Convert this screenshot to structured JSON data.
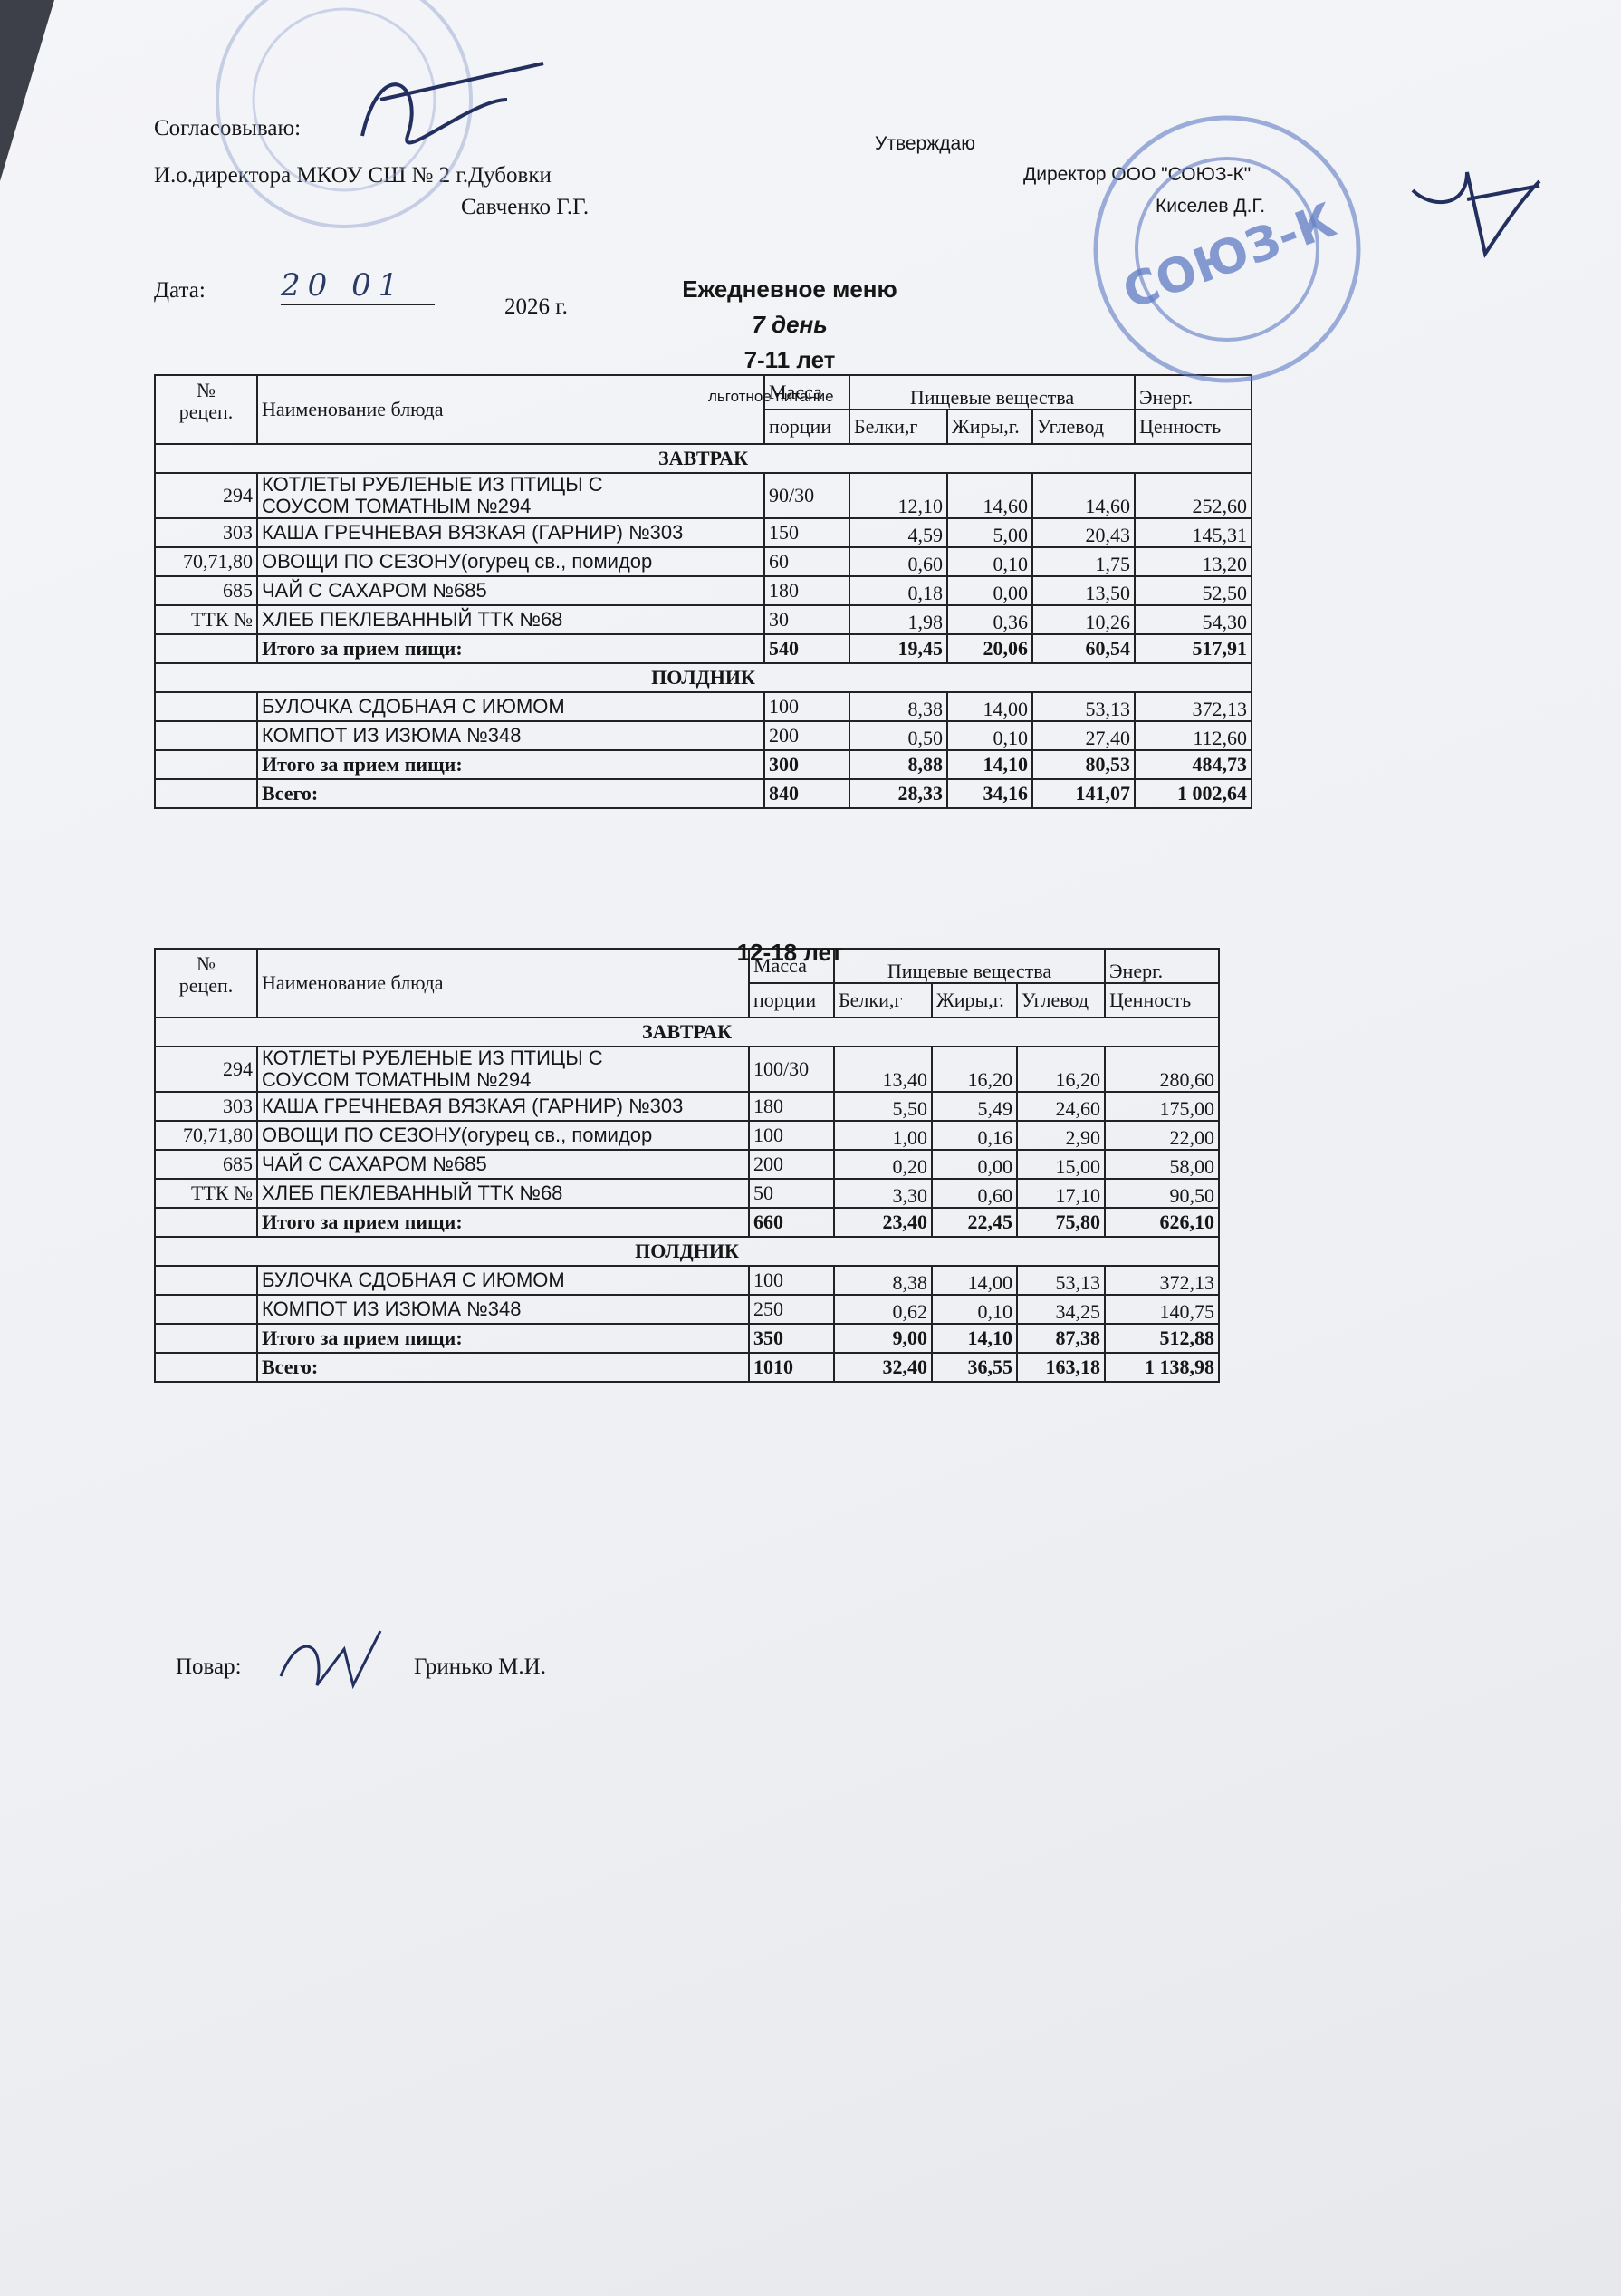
{
  "header": {
    "approve_left": {
      "label": "Согласовываю:",
      "position": "И.о.директора МКОУ СШ № 2 г.Дубовки",
      "person": "Савченко Г.Г."
    },
    "approve_right": {
      "label": "Утверждаю",
      "position": "Директор ООО \"СОЮЗ-К\"",
      "person": "Киселев Д.Г."
    },
    "date": {
      "label": "Дата:",
      "handwritten": "20 01",
      "year": "2026 г."
    },
    "title": "Ежедневное меню",
    "day": "7 день",
    "note": "льготное питание"
  },
  "stamp_text": "СОЮЗ-К",
  "tables": [
    {
      "age": "7-11 лет",
      "columns": {
        "rec": [
          "№",
          "рецеп."
        ],
        "name": "Наименование блюда",
        "mass": [
          "Масса",
          "порции"
        ],
        "nutrients": "Пищевые вещества",
        "protein": "Белки,г",
        "fat": "Жиры,г.",
        "carbs": "Углевод",
        "energy": [
          "Энерг.",
          "Ценность"
        ]
      },
      "rows": [
        {
          "section": "ЗАВТРАК"
        },
        {
          "rec": "294",
          "name": [
            "КОТЛЕТЫ РУБЛЕНЫЕ ИЗ ПТИЦЫ С",
            "СОУСОМ ТОМАТНЫМ №294"
          ],
          "mass": "90/30",
          "protein": "12,10",
          "fat": "14,60",
          "carbs": "14,60",
          "energy": "252,60"
        },
        {
          "rec": "303",
          "name": [
            "КАША ГРЕЧНЕВАЯ ВЯЗКАЯ (ГАРНИР) №303"
          ],
          "mass": "150",
          "protein": "4,59",
          "fat": "5,00",
          "carbs": "20,43",
          "energy": "145,31"
        },
        {
          "rec": "70,71,80",
          "name": [
            "ОВОЩИ ПО СЕЗОНУ(огурец св., помидор"
          ],
          "mass": "60",
          "protein": "0,60",
          "fat": "0,10",
          "carbs": "1,75",
          "energy": "13,20"
        },
        {
          "rec": "685",
          "name": [
            "ЧАЙ С САХАРОМ №685"
          ],
          "mass": "180",
          "protein": "0,18",
          "fat": "0,00",
          "carbs": "13,50",
          "energy": "52,50"
        },
        {
          "rec": "ТТК №",
          "name": [
            "ХЛЕБ ПЕКЛЕВАННЫЙ ТТК №68"
          ],
          "mass": "30",
          "protein": "1,98",
          "fat": "0,36",
          "carbs": "10,26",
          "energy": "54,30"
        },
        {
          "label": "Итого за прием пищи:",
          "mass": "540",
          "protein": "19,45",
          "fat": "20,06",
          "carbs": "60,54",
          "energy": "517,91"
        },
        {
          "section": "ПОЛДНИК"
        },
        {
          "name": [
            "БУЛОЧКА СДОБНАЯ С ИЮМОМ"
          ],
          "mass": "100",
          "protein": "8,38",
          "fat": "14,00",
          "carbs": "53,13",
          "energy": "372,13"
        },
        {
          "name": [
            "КОМПОТ ИЗ ИЗЮМА №348"
          ],
          "mass": "200",
          "protein": "0,50",
          "fat": "0,10",
          "carbs": "27,40",
          "energy": "112,60"
        },
        {
          "label": "Итого за прием пищи:",
          "mass": "300",
          "protein": "8,88",
          "fat": "14,10",
          "carbs": "80,53",
          "energy": "484,73"
        },
        {
          "label": "Всего:",
          "mass": "840",
          "protein": "28,33",
          "fat": "34,16",
          "carbs": "141,07",
          "energy": "1 002,64"
        }
      ]
    },
    {
      "age": "12-18 лет",
      "columns": {
        "rec": [
          "№",
          "рецеп."
        ],
        "name": "Наименование блюда",
        "mass": [
          "Масса",
          "порции"
        ],
        "nutrients": "Пищевые вещества",
        "protein": "Белки,г",
        "fat": "Жиры,г.",
        "carbs": "Углевод",
        "energy": [
          "Энерг.",
          "Ценность"
        ]
      },
      "rows": [
        {
          "section": "ЗАВТРАК"
        },
        {
          "rec": "294",
          "name": [
            "КОТЛЕТЫ РУБЛЕНЫЕ ИЗ ПТИЦЫ С",
            "СОУСОМ ТОМАТНЫМ №294"
          ],
          "mass": "100/30",
          "protein": "13,40",
          "fat": "16,20",
          "carbs": "16,20",
          "energy": "280,60"
        },
        {
          "rec": "303",
          "name": [
            "КАША ГРЕЧНЕВАЯ ВЯЗКАЯ (ГАРНИР) №303"
          ],
          "mass": "180",
          "protein": "5,50",
          "fat": "5,49",
          "carbs": "24,60",
          "energy": "175,00"
        },
        {
          "rec": "70,71,80",
          "name": [
            "ОВОЩИ ПО СЕЗОНУ(огурец св., помидор"
          ],
          "mass": "100",
          "protein": "1,00",
          "fat": "0,16",
          "carbs": "2,90",
          "energy": "22,00"
        },
        {
          "rec": "685",
          "name": [
            "ЧАЙ С САХАРОМ №685"
          ],
          "mass": "200",
          "protein": "0,20",
          "fat": "0,00",
          "carbs": "15,00",
          "energy": "58,00"
        },
        {
          "rec": "ТТК №",
          "name": [
            "ХЛЕБ ПЕКЛЕВАННЫЙ ТТК №68"
          ],
          "mass": "50",
          "protein": "3,30",
          "fat": "0,60",
          "carbs": "17,10",
          "energy": "90,50"
        },
        {
          "label": "Итого за прием пищи:",
          "mass": "660",
          "protein": "23,40",
          "fat": "22,45",
          "carbs": "75,80",
          "energy": "626,10"
        },
        {
          "section": "ПОЛДНИК"
        },
        {
          "name": [
            "БУЛОЧКА СДОБНАЯ С ИЮМОМ"
          ],
          "mass": "100",
          "protein": "8,38",
          "fat": "14,00",
          "carbs": "53,13",
          "energy": "372,13"
        },
        {
          "name": [
            "КОМПОТ ИЗ ИЗЮМА №348"
          ],
          "mass": "250",
          "protein": "0,62",
          "fat": "0,10",
          "carbs": "34,25",
          "energy": "140,75"
        },
        {
          "label": "Итого за прием пищи:",
          "mass": "350",
          "protein": "9,00",
          "fat": "14,10",
          "carbs": "87,38",
          "energy": "512,88"
        },
        {
          "label": "Всего:",
          "mass": "1010",
          "protein": "32,40",
          "fat": "36,55",
          "carbs": "163,18",
          "energy": "1 138,98"
        }
      ]
    }
  ],
  "footer": {
    "label": "Повар:",
    "person": "Гринько М.И."
  }
}
